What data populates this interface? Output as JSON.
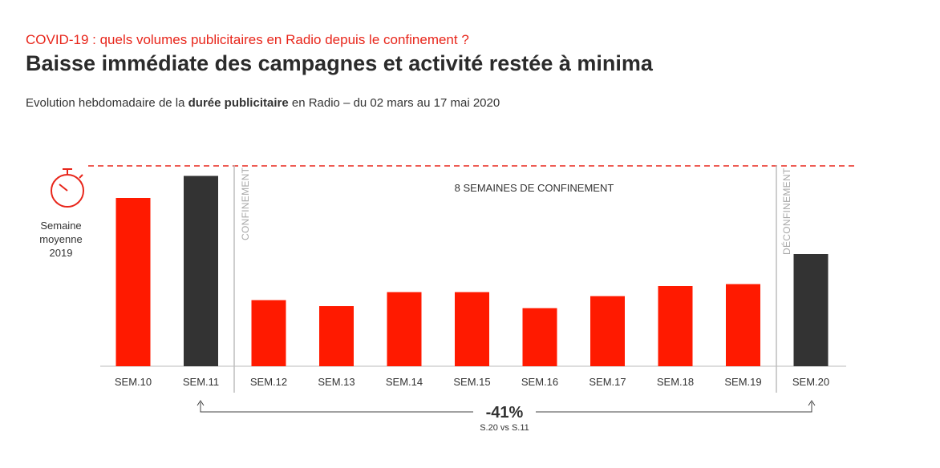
{
  "header": {
    "kicker": "COVID-19 : quels volumes publicitaires en Radio depuis le confinement ?",
    "title": "Baisse immédiate des campagnes et activité restée à minima",
    "subtitle_pre": "Evolution hebdomadaire de la ",
    "subtitle_bold": "durée publicitaire",
    "subtitle_post": " en Radio – du 02 mars au 17 mai 2020"
  },
  "reference": {
    "label_line1": "Semaine",
    "label_line2": "moyenne",
    "label_line3": "2019",
    "icon": "stopwatch-icon"
  },
  "annotations": {
    "confinement": "CONFINEMENT",
    "deconfinement": "DÉCONFINEMENT",
    "period": "8 SEMAINES DE CONFINEMENT",
    "change": "-41%",
    "change_note": "S.20 vs S.11"
  },
  "colors": {
    "red": "#ff1a00",
    "dark": "#333333",
    "reference_line": "#e8261b"
  },
  "chart_data": {
    "type": "bar",
    "categories": [
      "SEM.10",
      "SEM.11",
      "SEM.12",
      "SEM.13",
      "SEM.14",
      "SEM.15",
      "SEM.16",
      "SEM.17",
      "SEM.18",
      "SEM.19",
      "SEM.20"
    ],
    "values": [
      84,
      95,
      33,
      30,
      37,
      37,
      29,
      35,
      40,
      41,
      56
    ],
    "bar_colors": [
      "#ff1a00",
      "#333333",
      "#ff1a00",
      "#ff1a00",
      "#ff1a00",
      "#ff1a00",
      "#ff1a00",
      "#ff1a00",
      "#ff1a00",
      "#ff1a00",
      "#333333"
    ],
    "reference_value": 100,
    "ylim": [
      0,
      100
    ],
    "grid": false,
    "legend": "none"
  }
}
